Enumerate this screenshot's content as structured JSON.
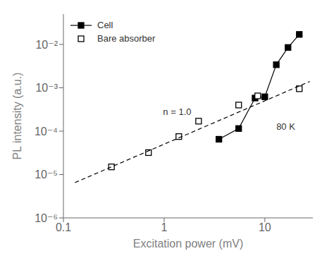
{
  "chart_data": {
    "type": "line",
    "log": true,
    "grid": false,
    "legend": "upper left",
    "xlabel": "Excitation power (mV)",
    "ylabel": "PL intensity (a.u.)",
    "xlim": [
      0.1,
      30
    ],
    "ylim": [
      1e-06,
      0.05
    ],
    "xticks": [
      0.1,
      1,
      10
    ],
    "yticks": [
      {
        "value": 1e-06,
        "label": "10⁻⁶"
      },
      {
        "value": 1e-05,
        "label": "10⁻⁵"
      },
      {
        "value": 0.0001,
        "label": "10⁻⁴"
      },
      {
        "value": 0.001,
        "label": "10⁻³"
      },
      {
        "value": 0.01,
        "label": "10⁻²"
      }
    ],
    "series": [
      {
        "name": "Cell",
        "type": "line",
        "marker": "square",
        "line_style": "solid",
        "color": "black",
        "x": [
          3.5,
          5.5,
          8.0,
          10.0,
          13.0,
          17.0,
          22.0
        ],
        "values": [
          6.5e-05,
          0.000115,
          0.00058,
          0.00062,
          0.0034,
          0.0085,
          0.017
        ]
      },
      {
        "name": "Bare absorber",
        "type": "scatter",
        "marker": "open_square",
        "color": "black",
        "x": [
          0.3,
          0.7,
          1.4,
          2.2,
          5.5,
          8.5,
          22.0
        ],
        "values": [
          1.5e-05,
          3.2e-05,
          7.5e-05,
          0.00017,
          0.0004,
          0.00065,
          0.00095
        ]
      },
      {
        "type": "line",
        "marker": "none",
        "line_style": "dashed",
        "color": "black",
        "x": [
          0.13,
          28.0
        ],
        "values": [
          6.5e-06,
          0.0014
        ]
      }
    ],
    "annotations": [
      {
        "text": "n = 1.0",
        "x": 0.9,
        "y": 0.00028
      },
      {
        "text": "80 K",
        "x": 12.0,
        "y": 0.00013
      }
    ]
  }
}
